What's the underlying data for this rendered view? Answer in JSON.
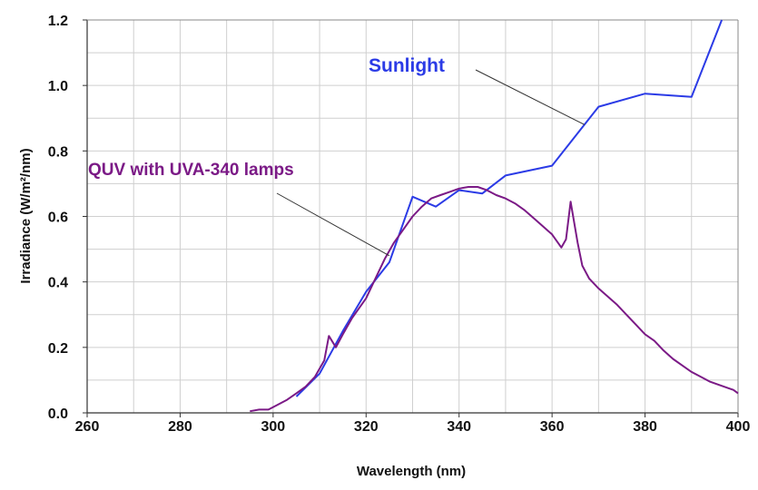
{
  "chart_data": {
    "type": "line",
    "title": "",
    "xlabel": "Wavelength (nm)",
    "ylabel": "Irradiance (W/m²/nm)",
    "xlim": [
      260,
      400
    ],
    "ylim": [
      0,
      1.2
    ],
    "x_ticks": [
      "260",
      "280",
      "300",
      "320",
      "340",
      "360",
      "380",
      "400"
    ],
    "y_ticks": [
      "0.0",
      "0.2",
      "0.4",
      "0.6",
      "0.8",
      "1.0",
      "1.2"
    ],
    "grid": true,
    "series": [
      {
        "name": "Sunlight",
        "color": "#2b3be6",
        "x": [
          305,
          310,
          315,
          320,
          325,
          330,
          335,
          340,
          345,
          350,
          355,
          360,
          370,
          380,
          390,
          396.5
        ],
        "y": [
          0.05,
          0.12,
          0.25,
          0.37,
          0.46,
          0.66,
          0.63,
          0.68,
          0.67,
          0.725,
          0.74,
          0.755,
          0.935,
          0.975,
          0.965,
          1.2
        ]
      },
      {
        "name": "QUV with UVA-340 lamps",
        "color": "#7b1a86",
        "x": [
          295,
          297,
          299,
          301,
          303,
          305,
          307,
          309,
          311,
          312,
          313.5,
          315,
          317,
          320,
          322,
          324,
          326,
          328,
          330,
          332,
          334,
          336,
          338,
          340,
          342,
          344,
          346,
          348,
          350,
          352,
          354,
          356,
          358,
          360,
          362,
          363,
          364,
          365.5,
          366.5,
          368,
          370,
          372,
          374,
          376,
          378,
          380,
          382,
          384,
          386,
          388,
          390,
          392,
          394,
          396,
          398,
          399,
          400
        ],
        "y": [
          0.005,
          0.01,
          0.01,
          0.025,
          0.04,
          0.06,
          0.08,
          0.11,
          0.16,
          0.235,
          0.2,
          0.24,
          0.29,
          0.35,
          0.41,
          0.47,
          0.52,
          0.56,
          0.6,
          0.63,
          0.655,
          0.665,
          0.675,
          0.685,
          0.69,
          0.69,
          0.68,
          0.665,
          0.655,
          0.64,
          0.62,
          0.595,
          0.57,
          0.545,
          0.505,
          0.53,
          0.645,
          0.52,
          0.45,
          0.41,
          0.38,
          0.355,
          0.33,
          0.3,
          0.27,
          0.24,
          0.22,
          0.19,
          0.165,
          0.145,
          0.125,
          0.11,
          0.095,
          0.085,
          0.075,
          0.07,
          0.06
        ]
      }
    ],
    "annotations": [
      {
        "text": "Sunlight",
        "series": "Sunlight",
        "points_to": [
          367,
          0.88
        ]
      },
      {
        "text": "QUV with UVA-340 lamps",
        "series": "QUV with UVA-340 lamps",
        "points_to": [
          325,
          0.48
        ]
      }
    ]
  }
}
